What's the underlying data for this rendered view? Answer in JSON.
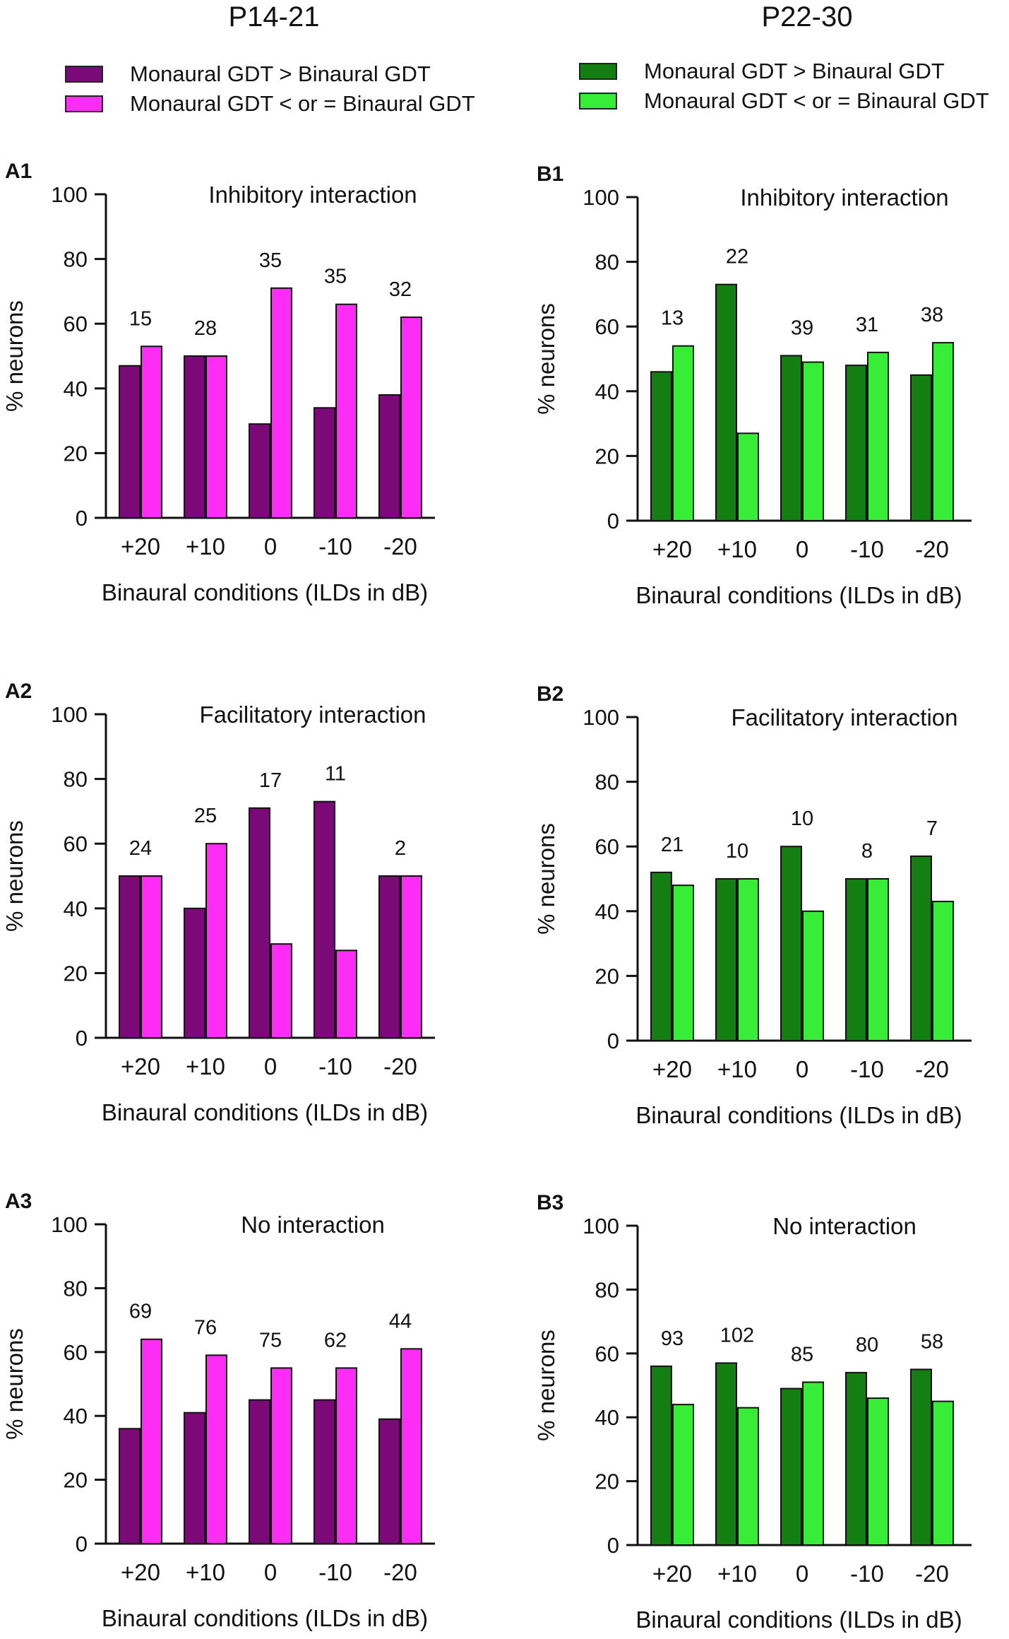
{
  "groups": [
    {
      "title": "P14-21",
      "colors": {
        "dark": "#7b0a78",
        "light": "#ff2cf6"
      },
      "legend": [
        "Monaural GDT > Binaural GDT",
        "Monaural GDT < or = Binaural GDT"
      ]
    },
    {
      "title": "P22-30",
      "colors": {
        "dark": "#137f13",
        "light": "#37ed37"
      },
      "legend": [
        "Monaural GDT > Binaural GDT",
        "Monaural GDT < or = Binaural GDT"
      ]
    }
  ],
  "chart_data": [
    {
      "type": "bar",
      "panel": "A1",
      "group": 0,
      "title": "Inhibitory interaction",
      "categories": [
        "+20",
        "+10",
        "0",
        "-10",
        "-20"
      ],
      "series": [
        {
          "name": "Monaural GDT > Binaural GDT",
          "values": [
            47,
            50,
            29,
            34,
            38
          ]
        },
        {
          "name": "Monaural GDT < or = Binaural GDT",
          "values": [
            53,
            50,
            71,
            66,
            62
          ]
        }
      ],
      "counts": [
        "15",
        "28",
        "35",
        "35",
        "32"
      ],
      "xlabel": "Binaural conditions (ILDs in dB)",
      "ylabel": "% neurons",
      "ylim": [
        0,
        100
      ],
      "yticks": [
        "0",
        "20",
        "40",
        "60",
        "80",
        "100"
      ]
    },
    {
      "type": "bar",
      "panel": "B1",
      "group": 1,
      "title": "Inhibitory interaction",
      "categories": [
        "+20",
        "+10",
        "0",
        "-10",
        "-20"
      ],
      "series": [
        {
          "name": "Monaural GDT > Binaural GDT",
          "values": [
            46,
            73,
            51,
            48,
            45
          ]
        },
        {
          "name": "Monaural GDT < or = Binaural GDT",
          "values": [
            54,
            27,
            49,
            52,
            55
          ]
        }
      ],
      "counts": [
        "13",
        "22",
        "39",
        "31",
        "38"
      ],
      "xlabel": "Binaural conditions (ILDs in dB)",
      "ylabel": "% neurons",
      "ylim": [
        0,
        100
      ],
      "yticks": [
        "0",
        "20",
        "40",
        "60",
        "80",
        "100"
      ]
    },
    {
      "type": "bar",
      "panel": "A2",
      "group": 0,
      "title": "Facilitatory interaction",
      "categories": [
        "+20",
        "+10",
        "0",
        "-10",
        "-20"
      ],
      "series": [
        {
          "name": "Monaural GDT > Binaural GDT",
          "values": [
            50,
            40,
            71,
            73,
            50
          ]
        },
        {
          "name": "Monaural GDT < or = Binaural GDT",
          "values": [
            50,
            60,
            29,
            27,
            50
          ]
        }
      ],
      "counts": [
        "24",
        "25",
        "17",
        "11",
        "2"
      ],
      "xlabel": "Binaural conditions (ILDs in dB)",
      "ylabel": "% neurons",
      "ylim": [
        0,
        100
      ],
      "yticks": [
        "0",
        "20",
        "40",
        "60",
        "80",
        "100"
      ]
    },
    {
      "type": "bar",
      "panel": "B2",
      "group": 1,
      "title": "Facilitatory interaction",
      "categories": [
        "+20",
        "+10",
        "0",
        "-10",
        "-20"
      ],
      "series": [
        {
          "name": "Monaural GDT > Binaural GDT",
          "values": [
            52,
            50,
            60,
            50,
            57
          ]
        },
        {
          "name": "Monaural GDT < or = Binaural GDT",
          "values": [
            48,
            50,
            40,
            50,
            43
          ]
        }
      ],
      "counts": [
        "21",
        "10",
        "10",
        "8",
        "7"
      ],
      "xlabel": "Binaural conditions (ILDs in dB)",
      "ylabel": "% neurons",
      "ylim": [
        0,
        100
      ],
      "yticks": [
        "0",
        "20",
        "40",
        "60",
        "80",
        "100"
      ]
    },
    {
      "type": "bar",
      "panel": "A3",
      "group": 0,
      "title": "No interaction",
      "categories": [
        "+20",
        "+10",
        "0",
        "-10",
        "-20"
      ],
      "series": [
        {
          "name": "Monaural GDT > Binaural GDT",
          "values": [
            36,
            41,
            45,
            45,
            39
          ]
        },
        {
          "name": "Monaural GDT < or = Binaural GDT",
          "values": [
            64,
            59,
            55,
            55,
            61
          ]
        }
      ],
      "counts": [
        "69",
        "76",
        "75",
        "62",
        "44"
      ],
      "xlabel": "Binaural conditions (ILDs in dB)",
      "ylabel": "% neurons",
      "ylim": [
        0,
        100
      ],
      "yticks": [
        "0",
        "20",
        "40",
        "60",
        "80",
        "100"
      ]
    },
    {
      "type": "bar",
      "panel": "B3",
      "group": 1,
      "title": "No interaction",
      "categories": [
        "+20",
        "+10",
        "0",
        "-10",
        "-20"
      ],
      "series": [
        {
          "name": "Monaural GDT > Binaural GDT",
          "values": [
            56,
            57,
            49,
            54,
            55
          ]
        },
        {
          "name": "Monaural GDT < or = Binaural GDT",
          "values": [
            44,
            43,
            51,
            46,
            45
          ]
        }
      ],
      "counts": [
        "93",
        "102",
        "85",
        "80",
        "58"
      ],
      "xlabel": "Binaural conditions (ILDs in dB)",
      "ylabel": "% neurons",
      "ylim": [
        0,
        100
      ],
      "yticks": [
        "0",
        "20",
        "40",
        "60",
        "80",
        "100"
      ]
    }
  ]
}
